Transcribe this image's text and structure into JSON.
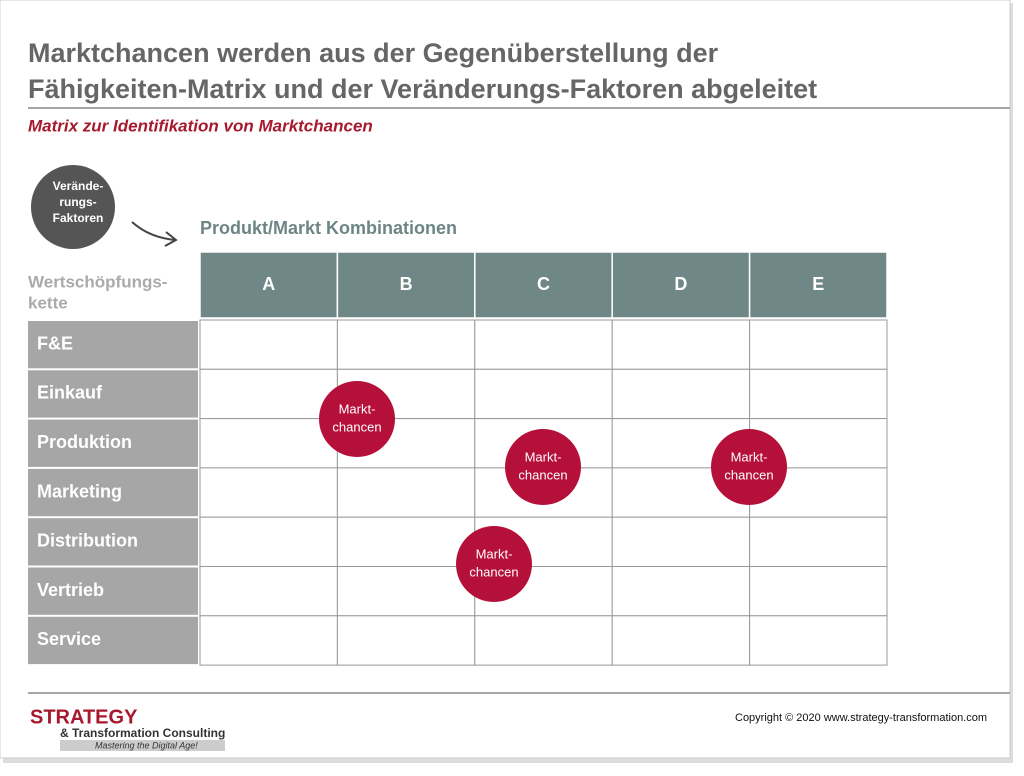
{
  "header": {
    "title_lines": [
      "Marktchancen werden aus der Gegenüberstellung der",
      "Fähigkeiten-Matrix und der Veränderungs-Faktoren abgeleitet"
    ],
    "subtitle": "Matrix zur Identifikation von Marktchancen"
  },
  "factors_circle": {
    "lines": [
      "Verände-",
      "rungs-",
      "Faktoren"
    ]
  },
  "matrix": {
    "column_title": "Produkt/Markt Kombinationen",
    "row_title_lines": [
      "Wertschöpfungs-",
      "kette"
    ],
    "columns": [
      "A",
      "B",
      "C",
      "D",
      "E"
    ],
    "rows": [
      "F&E",
      "Einkauf",
      "Produktion",
      "Marketing",
      "Distribution",
      "Vertrieb",
      "Service"
    ],
    "chances": [
      {
        "lines": [
          "Markt-",
          "chancen"
        ]
      },
      {
        "lines": [
          "Markt-",
          "chancen"
        ]
      },
      {
        "lines": [
          "Markt-",
          "chancen"
        ]
      },
      {
        "lines": [
          "Markt-",
          "chancen"
        ]
      }
    ]
  },
  "footer": {
    "logo": "STRATEGY",
    "logo_sub": "& Transformation Consulting",
    "tagline": "Mastering the Digital Age!",
    "copyright": "Copyright © 2020 www.strategy-transformation.com"
  }
}
